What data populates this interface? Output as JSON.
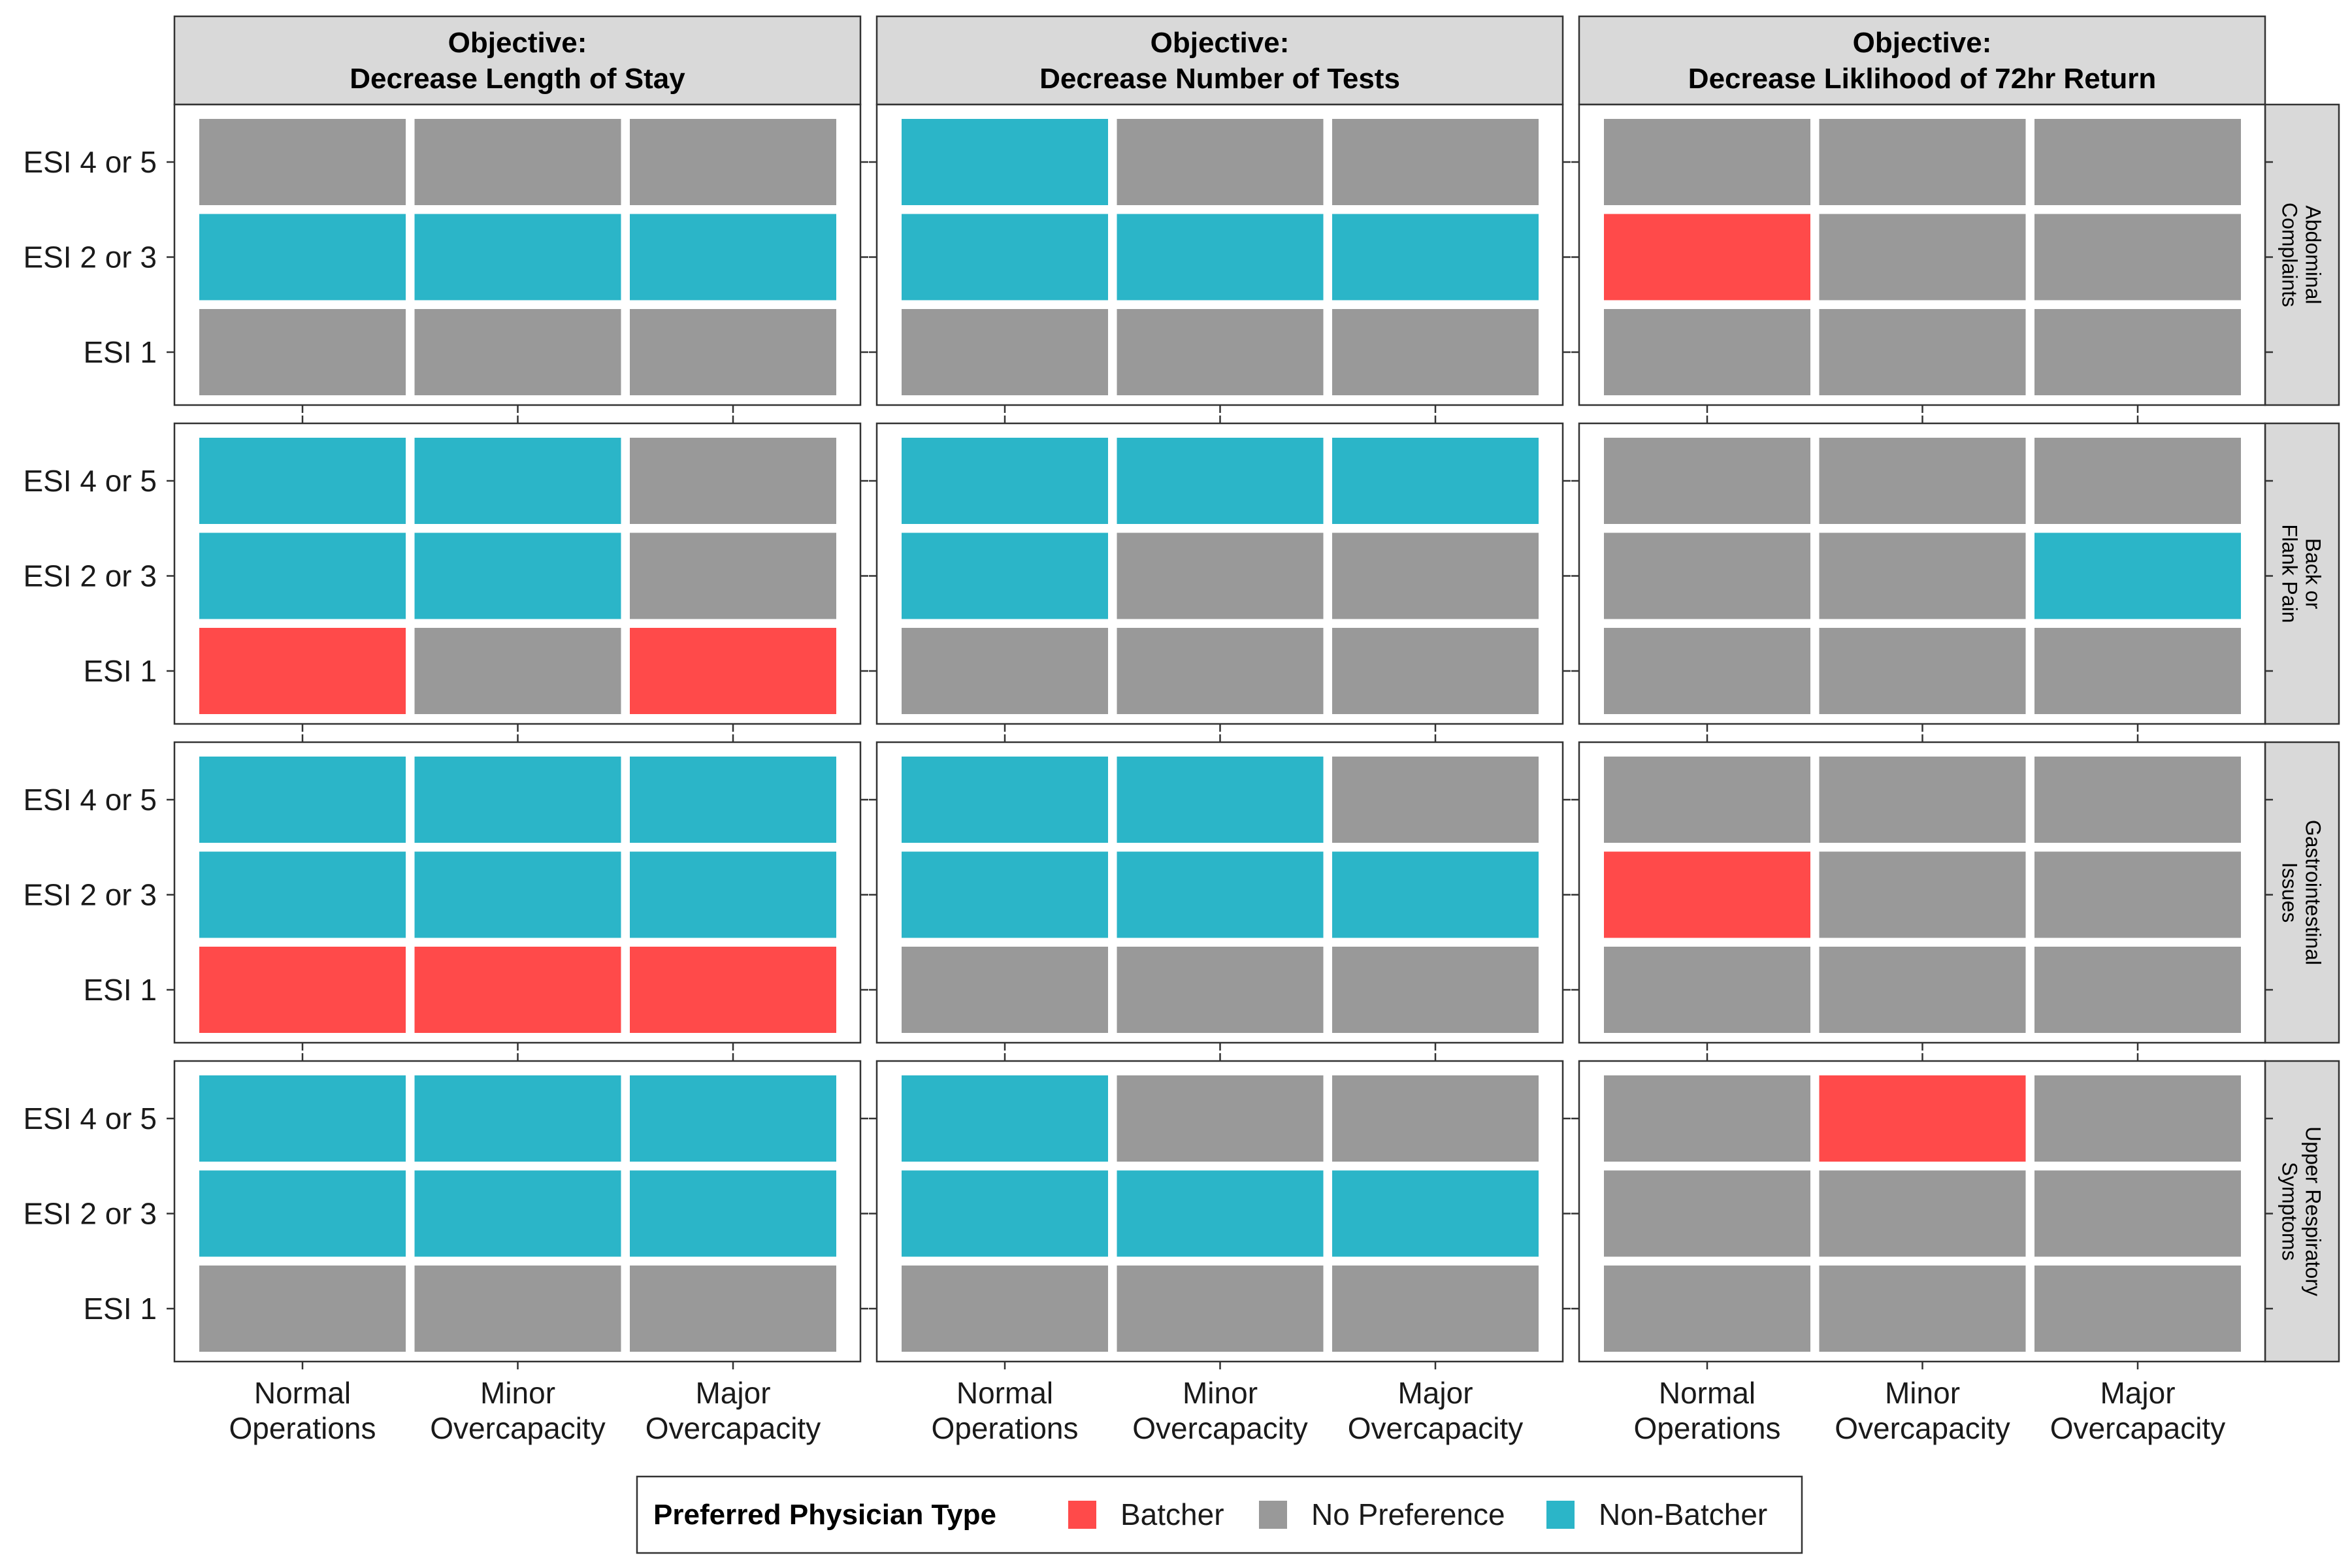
{
  "chart_data": {
    "type": "heatmap",
    "col_facets": [
      {
        "line1": "Objective:",
        "line2": "Decrease Length of Stay"
      },
      {
        "line1": "Objective:",
        "line2": "Decrease Number of Tests"
      },
      {
        "line1": "Objective:",
        "line2": "Decrease Liklihood of 72hr Return"
      }
    ],
    "row_facets": [
      {
        "line1": "Abdominal",
        "line2": "Complaints"
      },
      {
        "line1": "Back or",
        "line2": "Flank Pain"
      },
      {
        "line1": "Gastrointestinal",
        "line2": "Issues"
      },
      {
        "line1": "Upper Respiratory",
        "line2": "Symptoms"
      }
    ],
    "x_categories": [
      {
        "line1": "Normal",
        "line2": "Operations"
      },
      {
        "line1": "Minor",
        "line2": "Overcapacity"
      },
      {
        "line1": "Major",
        "line2": "Overcapacity"
      }
    ],
    "y_categories": [
      "ESI 4 or 5",
      "ESI 2 or 3",
      "ESI 1"
    ],
    "legend": {
      "title": "Preferred Physician Type",
      "position": "bottom",
      "entries": [
        {
          "key": "B",
          "label": "Batcher",
          "color": "#ff4a4a"
        },
        {
          "key": "N",
          "label": "No Preference",
          "color": "#999999"
        },
        {
          "key": "C",
          "label": "Non-Batcher",
          "color": "#2bb5c8"
        }
      ]
    },
    "cells": [
      [
        [
          [
            "N",
            "N",
            "N"
          ],
          [
            "C",
            "C",
            "C"
          ],
          [
            "N",
            "N",
            "N"
          ]
        ],
        [
          [
            "C",
            "N",
            "N"
          ],
          [
            "C",
            "C",
            "C"
          ],
          [
            "N",
            "N",
            "N"
          ]
        ],
        [
          [
            "N",
            "N",
            "N"
          ],
          [
            "B",
            "N",
            "N"
          ],
          [
            "N",
            "N",
            "N"
          ]
        ]
      ],
      [
        [
          [
            "C",
            "C",
            "N"
          ],
          [
            "C",
            "C",
            "N"
          ],
          [
            "B",
            "N",
            "B"
          ]
        ],
        [
          [
            "C",
            "C",
            "C"
          ],
          [
            "C",
            "N",
            "N"
          ],
          [
            "N",
            "N",
            "N"
          ]
        ],
        [
          [
            "N",
            "N",
            "N"
          ],
          [
            "N",
            "N",
            "C"
          ],
          [
            "N",
            "N",
            "N"
          ]
        ]
      ],
      [
        [
          [
            "C",
            "C",
            "C"
          ],
          [
            "C",
            "C",
            "C"
          ],
          [
            "B",
            "B",
            "B"
          ]
        ],
        [
          [
            "C",
            "C",
            "N"
          ],
          [
            "C",
            "C",
            "C"
          ],
          [
            "N",
            "N",
            "N"
          ]
        ],
        [
          [
            "N",
            "N",
            "N"
          ],
          [
            "B",
            "N",
            "N"
          ],
          [
            "N",
            "N",
            "N"
          ]
        ]
      ],
      [
        [
          [
            "C",
            "C",
            "C"
          ],
          [
            "C",
            "C",
            "C"
          ],
          [
            "N",
            "N",
            "N"
          ]
        ],
        [
          [
            "C",
            "N",
            "N"
          ],
          [
            "C",
            "C",
            "C"
          ],
          [
            "N",
            "N",
            "N"
          ]
        ],
        [
          [
            "N",
            "B",
            "N"
          ],
          [
            "N",
            "N",
            "N"
          ],
          [
            "N",
            "N",
            "N"
          ]
        ]
      ]
    ]
  }
}
